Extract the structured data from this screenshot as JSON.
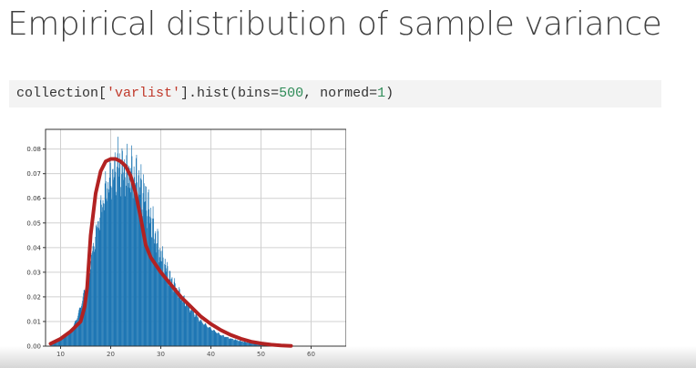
{
  "slide": {
    "title": "Empirical distribution of sample variance"
  },
  "code": {
    "prefix": "collection[",
    "string_arg": "'varlist'",
    "middle": "].hist(bins=",
    "bins_value": "500",
    "sep": ", normed=",
    "normed_value": "1",
    "suffix": ")"
  },
  "chart_data": {
    "type": "bar",
    "title": "",
    "xlabel": "",
    "ylabel": "",
    "xlim": [
      7,
      67
    ],
    "ylim": [
      0,
      0.088
    ],
    "x_ticks": [
      10,
      20,
      30,
      40,
      50,
      60
    ],
    "y_ticks": [
      "0.00",
      "0.01",
      "0.02",
      "0.03",
      "0.04",
      "0.05",
      "0.06",
      "0.07",
      "0.08"
    ],
    "grid": true,
    "bar_color": "#1f77b4",
    "histogram_envelope": {
      "x": [
        8,
        10,
        12,
        13,
        14,
        15,
        16,
        17,
        18,
        19,
        20,
        21,
        22,
        23,
        24,
        25,
        26,
        27,
        28,
        29,
        30,
        32,
        34,
        36,
        38,
        40,
        42,
        44,
        46,
        48,
        50,
        52,
        54,
        56
      ],
      "y": [
        0.001,
        0.003,
        0.006,
        0.01,
        0.016,
        0.024,
        0.034,
        0.045,
        0.055,
        0.063,
        0.068,
        0.071,
        0.072,
        0.071,
        0.07,
        0.068,
        0.065,
        0.06,
        0.052,
        0.044,
        0.037,
        0.027,
        0.02,
        0.015,
        0.01,
        0.007,
        0.0045,
        0.003,
        0.002,
        0.0012,
        0.0007,
        0.0004,
        0.0002,
        0.0001
      ]
    },
    "annotation_curve": {
      "color": "#b22222",
      "x": [
        8,
        10,
        12,
        14,
        14.8,
        15.3,
        16,
        17,
        18,
        19,
        20,
        21,
        22,
        23,
        24,
        25,
        26,
        27,
        28,
        29,
        30,
        32,
        34,
        36,
        38,
        40,
        42,
        44,
        46,
        48,
        50,
        52,
        54,
        56
      ],
      "y": [
        0.001,
        0.003,
        0.006,
        0.01,
        0.016,
        0.024,
        0.045,
        0.062,
        0.071,
        0.075,
        0.076,
        0.076,
        0.075,
        0.073,
        0.069,
        0.062,
        0.052,
        0.041,
        0.036,
        0.033,
        0.03,
        0.025,
        0.02,
        0.016,
        0.012,
        0.009,
        0.0065,
        0.0045,
        0.003,
        0.0018,
        0.0011,
        0.0006,
        0.0003,
        0.0001
      ]
    }
  }
}
